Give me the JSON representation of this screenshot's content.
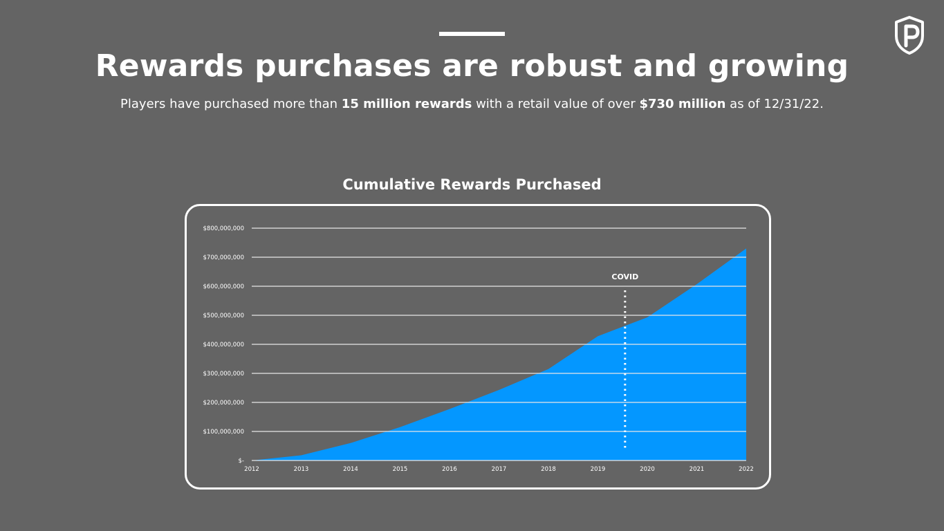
{
  "header": {
    "title": "Rewards purchases are robust and growing",
    "subtitle_pre": "Players have purchased more than ",
    "subtitle_bold1": "15 million rewards",
    "subtitle_mid": " with a retail value of over ",
    "subtitle_bold2": "$730 million",
    "subtitle_post": " as of 12/31/22."
  },
  "logo": {
    "icon": "shield-p-logo"
  },
  "chart_data": {
    "type": "area",
    "title": "Cumulative Rewards Purchased",
    "xlabel": "",
    "ylabel": "",
    "x": [
      2012,
      2013,
      2014,
      2015,
      2016,
      2017,
      2018,
      2019,
      2020,
      2021,
      2022
    ],
    "values": [
      0,
      18000000,
      60000000,
      115000000,
      177000000,
      243000000,
      315000000,
      428000000,
      493000000,
      607000000,
      730000000
    ],
    "ylim": [
      0,
      800000000
    ],
    "y_ticks": [
      0,
      100000000,
      200000000,
      300000000,
      400000000,
      500000000,
      600000000,
      700000000,
      800000000
    ],
    "y_tick_labels": [
      "$-",
      "$100,000,000",
      "$200,000,000",
      "$300,000,000",
      "$400,000,000",
      "$500,000,000",
      "$600,000,000",
      "$700,000,000",
      "$800,000,000"
    ],
    "x_tick_labels": [
      "2012",
      "2013",
      "2014",
      "2015",
      "2016",
      "2017",
      "2018",
      "2019",
      "2020",
      "2021",
      "2022"
    ],
    "grid": true,
    "fill_color": "#0497FF",
    "annotations": [
      {
        "label": "COVID",
        "x": 2019.55
      }
    ]
  }
}
